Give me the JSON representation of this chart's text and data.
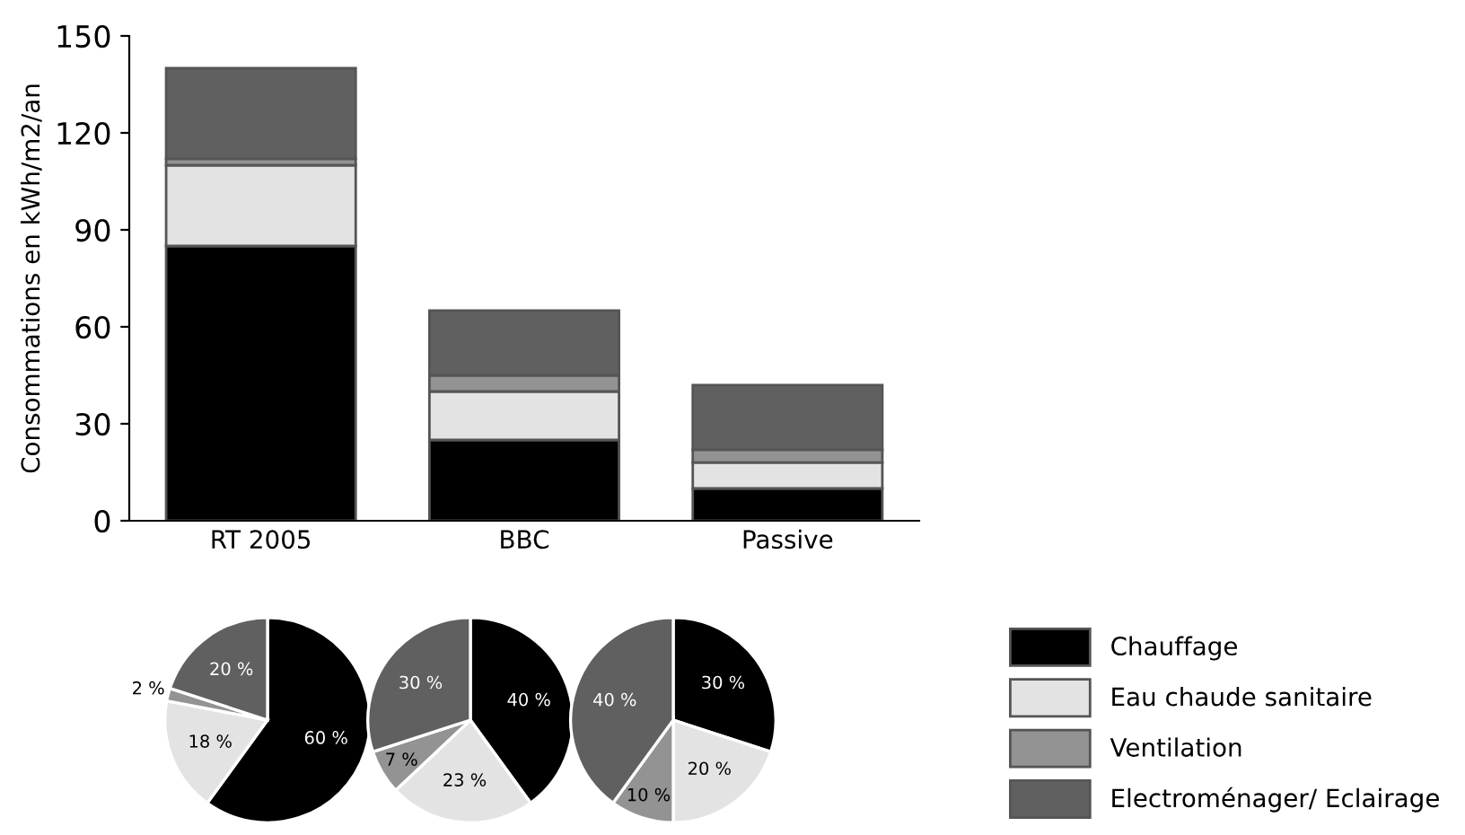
{
  "chart_data": [
    {
      "type": "bar",
      "stacked": true,
      "ylabel": "Consommations en kWh/m2/an",
      "categories": [
        "RT 2005",
        "BBC",
        "Passive"
      ],
      "ylim": [
        0,
        150
      ],
      "yticks": [
        0,
        30,
        60,
        90,
        120,
        150
      ],
      "legend": "bottom right",
      "series": [
        {
          "name": "Chauffage",
          "color": "#000000",
          "values": [
            85,
            25,
            10
          ]
        },
        {
          "name": "Eau chaude sanitaire",
          "color": "#e3e3e3",
          "values": [
            25,
            15,
            8
          ]
        },
        {
          "name": "Ventilation",
          "color": "#939393",
          "values": [
            2,
            5,
            4
          ]
        },
        {
          "name": "Electroménager/ Eclairage",
          "color": "#5f605f",
          "values": [
            28,
            20,
            20
          ]
        }
      ]
    },
    {
      "type": "pie",
      "categories": [
        null,
        null,
        null,
        null
      ],
      "values": [
        60,
        18,
        2,
        20
      ],
      "colors": [
        "#000000",
        "#e3e3e3",
        "#939393",
        "#5f605f"
      ],
      "value_labels": [
        "60 %",
        "18 %",
        "2 %",
        "20 %"
      ]
    },
    {
      "type": "pie",
      "categories": [
        null,
        null,
        null,
        null
      ],
      "values": [
        40,
        23,
        7,
        30
      ],
      "colors": [
        "#000000",
        "#e3e3e3",
        "#939393",
        "#5f605f"
      ],
      "value_labels": [
        "40 %",
        "23 %",
        "7 %",
        "30 %"
      ]
    },
    {
      "type": "pie",
      "categories": [
        null,
        null,
        null,
        null
      ],
      "values": [
        30,
        20,
        10,
        40
      ],
      "colors": [
        "#000000",
        "#e3e3e3",
        "#939393",
        "#5f605f"
      ],
      "value_labels": [
        "30 %",
        "20 %",
        "10 %",
        "40 %"
      ]
    }
  ]
}
